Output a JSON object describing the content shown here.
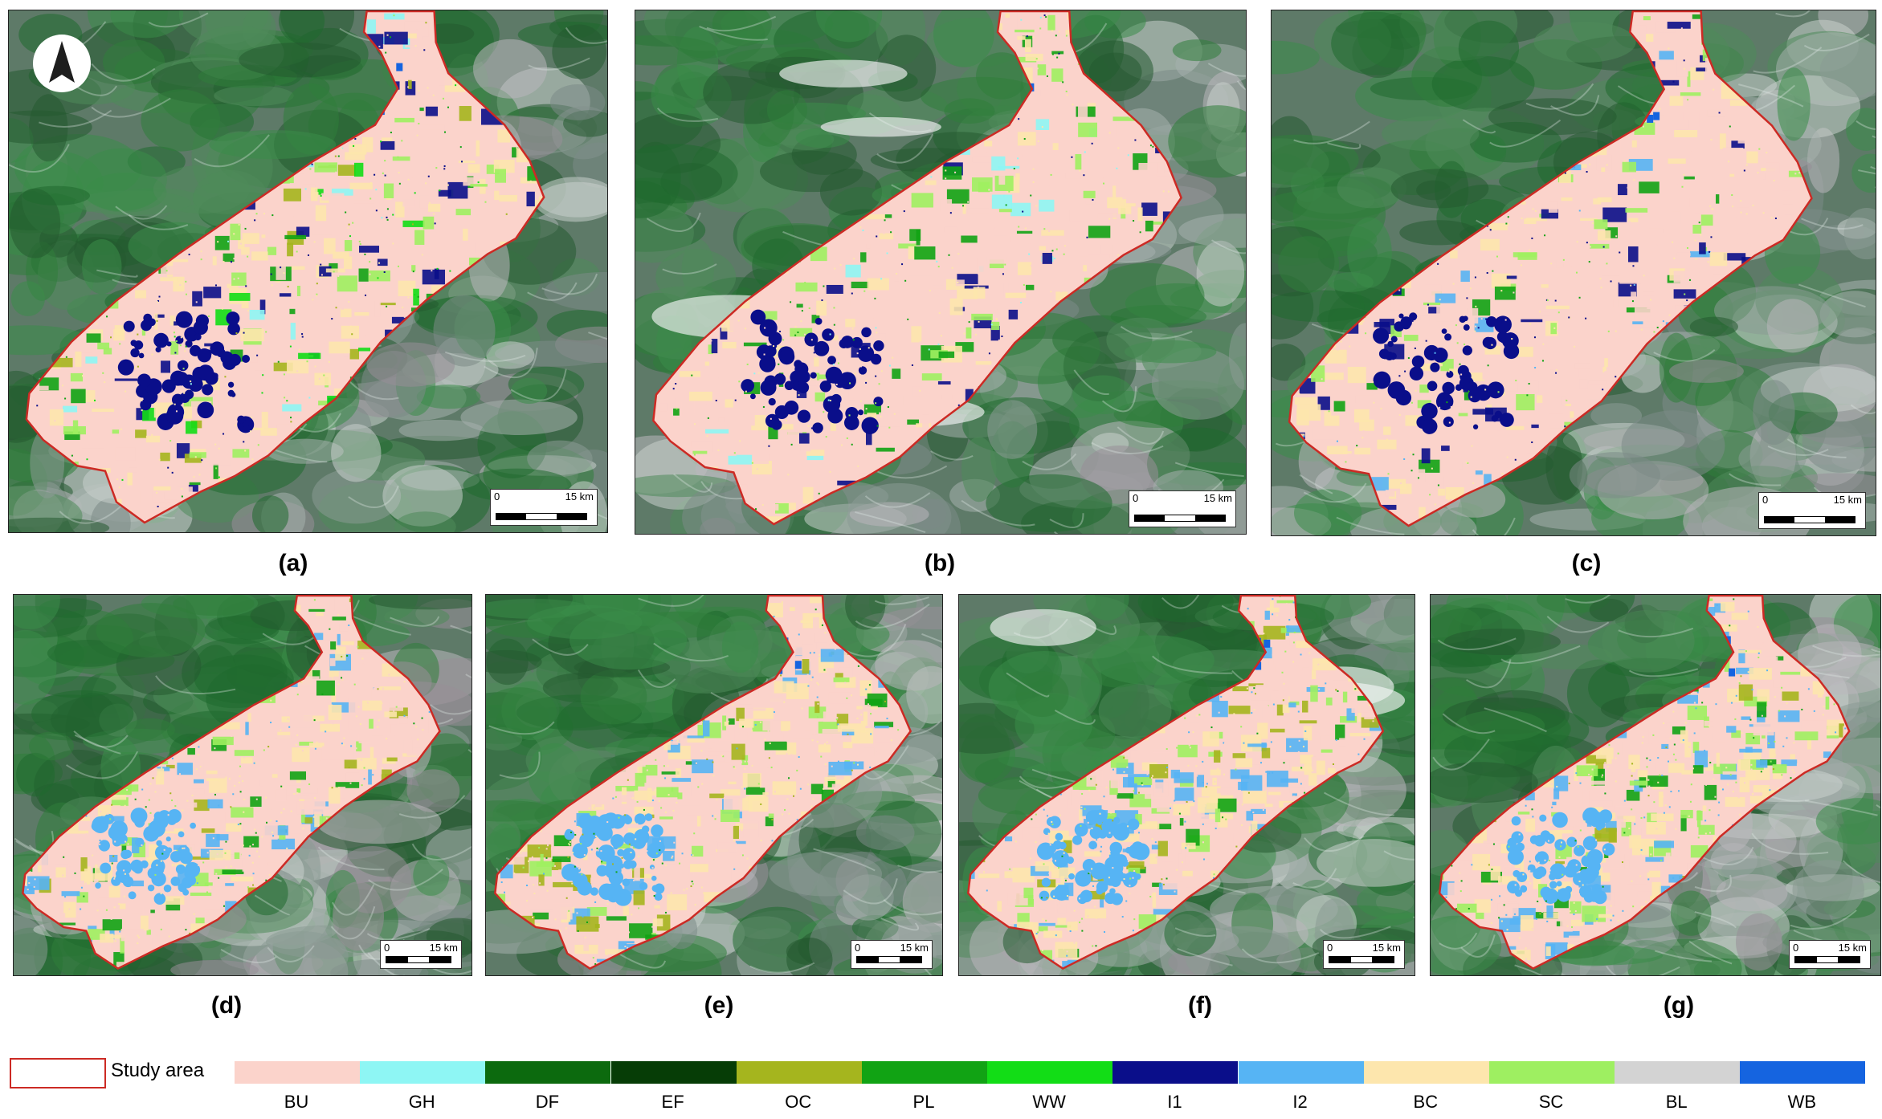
{
  "panels": [
    {
      "caption": "(a)",
      "scale_start": "0",
      "scale_end": "15 km",
      "has_north_arrow": true
    },
    {
      "caption": "(b)",
      "scale_start": "0",
      "scale_end": "15 km"
    },
    {
      "caption": "(c)",
      "scale_start": "0",
      "scale_end": "15 km"
    },
    {
      "caption": "(d)",
      "scale_start": "0",
      "scale_end": "15 km"
    },
    {
      "caption": "(e)",
      "scale_start": "0",
      "scale_end": "15 km"
    },
    {
      "caption": "(f)",
      "scale_start": "0",
      "scale_end": "15 km"
    },
    {
      "caption": "(g)",
      "scale_start": "0",
      "scale_end": "15 km"
    }
  ],
  "legend": {
    "study_area_label": "Study area",
    "study_area_color": "#cc2a24",
    "classes": [
      {
        "code": "BU",
        "color": "#fbd3cb"
      },
      {
        "code": "GH",
        "color": "#8ef6f4"
      },
      {
        "code": "DF",
        "color": "#0c6a0e"
      },
      {
        "code": "EF",
        "color": "#063d06"
      },
      {
        "code": "OC",
        "color": "#a5b51e"
      },
      {
        "code": "PL",
        "color": "#11a314"
      },
      {
        "code": "WW",
        "color": "#12dd16"
      },
      {
        "code": "I1",
        "color": "#0a0e8a"
      },
      {
        "code": "I2",
        "color": "#56b4f4"
      },
      {
        "code": "BC",
        "color": "#fde6ad"
      },
      {
        "code": "SC",
        "color": "#9eef61"
      },
      {
        "code": "BL",
        "color": "#d3d3d3"
      },
      {
        "code": "WB",
        "color": "#1564e0"
      }
    ]
  }
}
